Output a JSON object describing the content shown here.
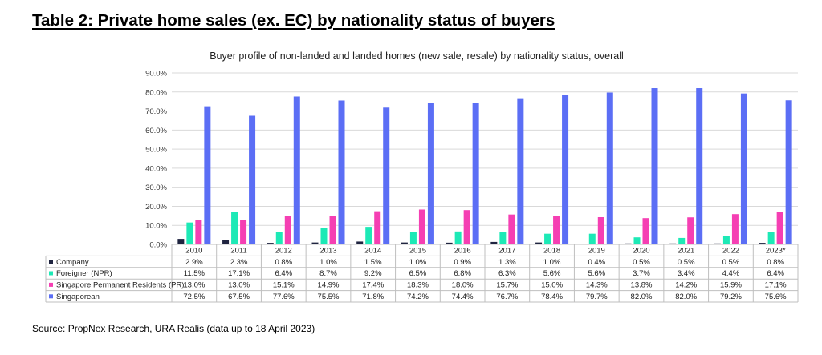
{
  "page": {
    "title": "Table 2: Private home sales (ex. EC) by nationality status of buyers",
    "source": "Source: PropNex Research, URA Realis (data up to 18 April 2023)"
  },
  "chart_data": {
    "type": "bar",
    "title": "Buyer profile of non-landed and landed homes (new sale, resale) by nationality status, overall",
    "categories": [
      "2010",
      "2011",
      "2012",
      "2013",
      "2014",
      "2015",
      "2016",
      "2017",
      "2018",
      "2019",
      "2020",
      "2021",
      "2022",
      "2023*"
    ],
    "ylim": [
      0,
      90
    ],
    "yticks": [
      "0.0%",
      "10.0%",
      "20.0%",
      "30.0%",
      "40.0%",
      "50.0%",
      "60.0%",
      "70.0%",
      "80.0%",
      "90.0%"
    ],
    "grid": true,
    "legend": "data-table",
    "series": [
      {
        "name": "Company",
        "color": "#1f2440",
        "values": [
          2.9,
          2.3,
          0.8,
          1.0,
          1.5,
          1.0,
          0.9,
          1.3,
          1.0,
          0.4,
          0.5,
          0.5,
          0.5,
          0.8
        ],
        "labels": [
          "2.9%",
          "2.3%",
          "0.8%",
          "1.0%",
          "1.5%",
          "1.0%",
          "0.9%",
          "1.3%",
          "1.0%",
          "0.4%",
          "0.5%",
          "0.5%",
          "0.5%",
          "0.8%"
        ]
      },
      {
        "name": "Foreigner (NPR)",
        "color": "#1de9b6",
        "values": [
          11.5,
          17.1,
          6.4,
          8.7,
          9.2,
          6.5,
          6.8,
          6.3,
          5.6,
          5.6,
          3.7,
          3.4,
          4.4,
          6.4
        ],
        "labels": [
          "11.5%",
          "17.1%",
          "6.4%",
          "8.7%",
          "9.2%",
          "6.5%",
          "6.8%",
          "6.3%",
          "5.6%",
          "5.6%",
          "3.7%",
          "3.4%",
          "4.4%",
          "6.4%"
        ]
      },
      {
        "name": "Singapore Permanent Residents (PR)",
        "color": "#f53fb3",
        "values": [
          13.0,
          13.0,
          15.1,
          14.9,
          17.4,
          18.3,
          18.0,
          15.7,
          15.0,
          14.3,
          13.8,
          14.2,
          15.9,
          17.1
        ],
        "labels": [
          "13.0%",
          "13.0%",
          "15.1%",
          "14.9%",
          "17.4%",
          "18.3%",
          "18.0%",
          "15.7%",
          "15.0%",
          "14.3%",
          "13.8%",
          "14.2%",
          "15.9%",
          "17.1%"
        ]
      },
      {
        "name": "Singaporean",
        "color": "#5b6ef5",
        "values": [
          72.5,
          67.5,
          77.6,
          75.5,
          71.8,
          74.2,
          74.4,
          76.7,
          78.4,
          79.7,
          82.0,
          82.0,
          79.2,
          75.6
        ],
        "labels": [
          "72.5%",
          "67.5%",
          "77.6%",
          "75.5%",
          "71.8%",
          "74.2%",
          "74.4%",
          "76.7%",
          "78.4%",
          "79.7%",
          "82.0%",
          "82.0%",
          "79.2%",
          "75.6%"
        ]
      }
    ]
  }
}
